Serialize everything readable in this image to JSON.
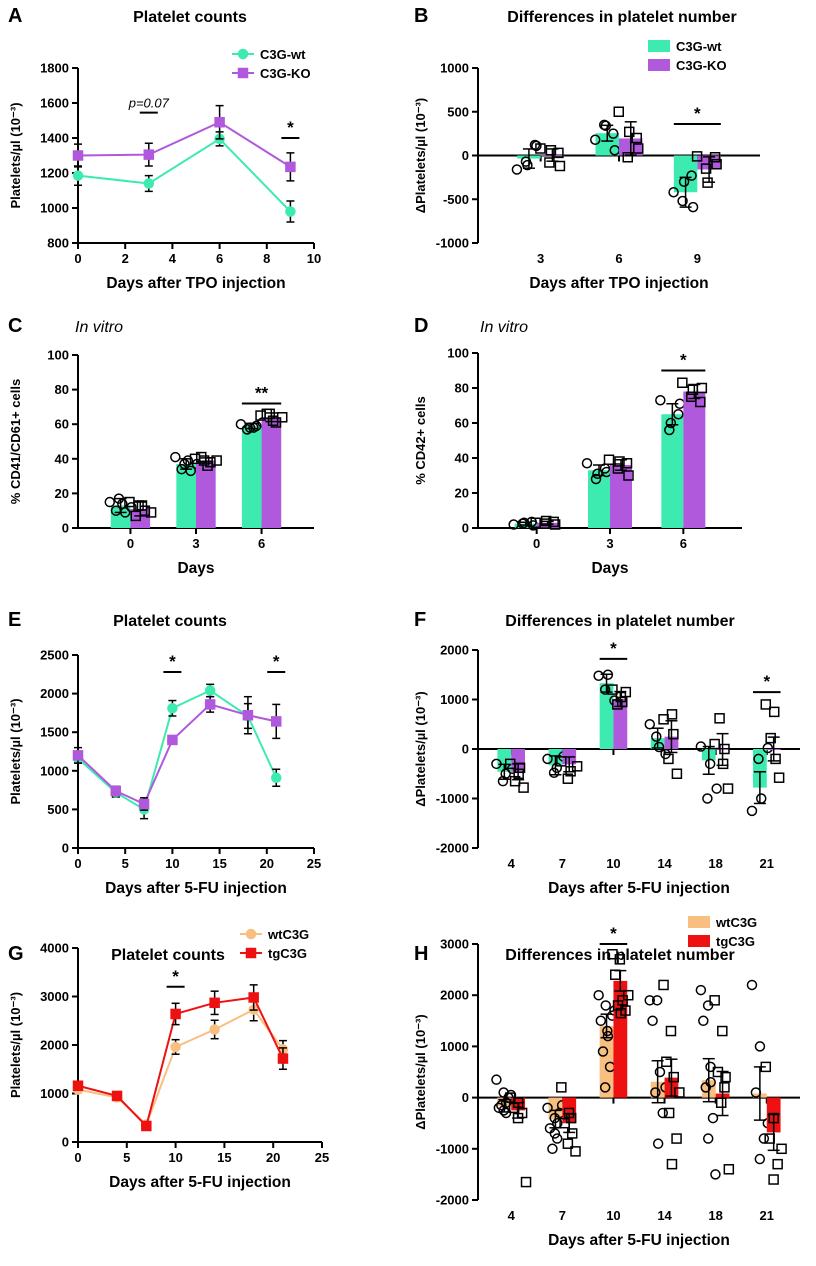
{
  "colors": {
    "wt": "#3DEBB1",
    "ko": "#B059DD",
    "wtC3G": "#F9BF80",
    "tgC3G": "#EE1111",
    "axis": "#000000"
  },
  "chart_data": [
    {
      "id": "A",
      "panel": "A",
      "type": "line",
      "title": "Platelet counts",
      "subtitle": "",
      "xlabel": "Days after TPO injection",
      "ylabel": "Platelets/µl (10⁻³)",
      "xlim": [
        0,
        10
      ],
      "ylim": [
        800,
        1800
      ],
      "xticks": [
        0,
        2,
        4,
        6,
        8,
        10
      ],
      "yticks": [
        800,
        1000,
        1200,
        1400,
        1600,
        1800
      ],
      "x": [
        0,
        3,
        6,
        9
      ],
      "series": [
        {
          "name": "C3G-wt",
          "color": "#3DEBB1",
          "marker": "circle",
          "values": [
            1185,
            1140,
            1395,
            980
          ],
          "errors": [
            55,
            45,
            40,
            60
          ]
        },
        {
          "name": "C3G-KO",
          "color": "#B059DD",
          "marker": "square",
          "values": [
            1300,
            1305,
            1490,
            1235
          ],
          "errors": [
            65,
            65,
            95,
            80
          ]
        }
      ],
      "annotations": [
        {
          "x": 3,
          "y": 1545,
          "text": "p=0.07",
          "bar": true
        },
        {
          "x": 9,
          "y": 1400,
          "text": "*",
          "bar": true
        }
      ],
      "legend": {
        "position": "top-right",
        "entries": [
          "C3G-wt",
          "C3G-KO"
        ]
      }
    },
    {
      "id": "B",
      "panel": "B",
      "type": "bar",
      "title": "Differences in platelet number",
      "subtitle": "",
      "xlabel": "Days after TPO injection",
      "ylabel": "ΔPlatelets/µl (10⁻³)",
      "ylim": [
        -1000,
        1000
      ],
      "yticks": [
        -1000,
        -500,
        0,
        500,
        1000
      ],
      "categories": [
        "3",
        "6",
        "9"
      ],
      "series": [
        {
          "name": "C3G-wt",
          "color": "#3DEBB1",
          "marker": "circle",
          "values": [
            -35,
            255,
            -420
          ],
          "errors": [
            110,
            90,
            170
          ],
          "points": [
            [
              -160,
              -110,
              -70,
              110,
              120
            ],
            [
              180,
              340,
              350,
              60,
              250
            ],
            [
              -420,
              -300,
              -520,
              -590,
              -230
            ]
          ]
        },
        {
          "name": "C3G-KO",
          "color": "#B059DD",
          "marker": "square",
          "values": [
            5,
            195,
            -160
          ],
          "errors": [
            70,
            190,
            145
          ],
          "points": [
            [
              80,
              60,
              -80,
              -120,
              30
            ],
            [
              500,
              270,
              -20,
              80,
              200
            ],
            [
              -10,
              -310,
              -150,
              -100,
              -20
            ]
          ]
        }
      ],
      "annotations": [
        {
          "category": "9",
          "y": 360,
          "text": "*",
          "bar": true
        }
      ],
      "legend": {
        "position": "top-right",
        "entries": [
          "C3G-wt",
          "C3G-KO"
        ]
      }
    },
    {
      "id": "C",
      "panel": "C",
      "type": "bar",
      "title": "",
      "subtitle": "In vitro",
      "xlabel": "Days",
      "ylabel": "% CD41/CD61+ cells",
      "ylim": [
        0,
        100
      ],
      "yticks": [
        0,
        20,
        40,
        60,
        80,
        100
      ],
      "categories": [
        "0",
        "3",
        "6"
      ],
      "series": [
        {
          "name": "C3G-wt",
          "color": "#3DEBB1",
          "marker": "circle",
          "values": [
            13,
            37,
            59
          ],
          "errors": [
            4,
            3,
            1.5
          ],
          "points": [
            [
              15,
              17,
              10,
              9,
              14,
              12
            ],
            [
              41,
              37,
              34,
              33,
              39,
              37
            ],
            [
              60,
              58,
              57,
              59,
              58,
              61
            ]
          ]
        },
        {
          "name": "C3G-KO",
          "color": "#B059DD",
          "marker": "square",
          "values": [
            11,
            39,
            64
          ],
          "errors": [
            4,
            1.5,
            2.5
          ],
          "points": [
            [
              15,
              13,
              7,
              10,
              13,
              9
            ],
            [
              40,
              39,
              41,
              38,
              36,
              39
            ],
            [
              65,
              66,
              66,
              61,
              62,
              64
            ]
          ]
        }
      ],
      "annotations": [
        {
          "category": "6",
          "y": 72,
          "text": "**",
          "bar": true
        }
      ],
      "legend": {
        "position": "none",
        "entries": []
      }
    },
    {
      "id": "D",
      "panel": "D",
      "type": "bar",
      "title": "",
      "subtitle": "In vitro",
      "xlabel": "Days",
      "ylabel": "% CD42+ cells",
      "ylim": [
        0,
        100
      ],
      "yticks": [
        0,
        20,
        40,
        60,
        80,
        100
      ],
      "categories": [
        "0",
        "3",
        "6"
      ],
      "series": [
        {
          "name": "C3G-wt",
          "color": "#3DEBB1",
          "marker": "circle",
          "values": [
            2.5,
            33,
            65
          ],
          "errors": [
            0.8,
            3,
            6
          ],
          "points": [
            [
              2,
              3,
              2.5,
              1.5,
              3.5
            ],
            [
              37,
              31,
              28,
              32,
              34
            ],
            [
              73,
              60,
              56,
              71,
              65
            ]
          ]
        },
        {
          "name": "C3G-KO",
          "color": "#B059DD",
          "marker": "square",
          "values": [
            3,
            36,
            78
          ],
          "errors": [
            0.8,
            3,
            4
          ],
          "points": [
            [
              3,
              4,
              2.5,
              2,
              3.5
            ],
            [
              39,
              38,
              34,
              30,
              37
            ],
            [
              83,
              79,
              75,
              80,
              72
            ]
          ]
        }
      ],
      "annotations": [
        {
          "category": "6",
          "y": 90,
          "text": "*",
          "bar": true
        }
      ],
      "legend": {
        "position": "none",
        "entries": []
      }
    },
    {
      "id": "E",
      "panel": "E",
      "type": "line",
      "title": "Platelet counts",
      "subtitle": "",
      "xlabel": "Days after 5-FU injection",
      "ylabel": "Platelets/µl (10⁻³)",
      "xlim": [
        0,
        25
      ],
      "ylim": [
        0,
        2500
      ],
      "xticks": [
        0,
        5,
        10,
        15,
        20,
        25
      ],
      "yticks": [
        0,
        500,
        1000,
        1500,
        2000,
        2500
      ],
      "x": [
        0,
        4,
        7,
        10,
        14,
        18,
        21
      ],
      "series": [
        {
          "name": "C3G-wt",
          "color": "#3DEBB1",
          "marker": "circle",
          "values": [
            1160,
            720,
            500,
            1810,
            2040,
            1710,
            910
          ],
          "errors": [
            60,
            60,
            120,
            100,
            80,
            160,
            110
          ]
        },
        {
          "name": "C3G-KO",
          "color": "#B059DD",
          "marker": "square",
          "values": [
            1200,
            740,
            570,
            1400,
            1860,
            1720,
            1640
          ],
          "errors": [
            100,
            60,
            80,
            50,
            100,
            240,
            220
          ]
        }
      ],
      "annotations": [
        {
          "x": 10,
          "y": 2280,
          "text": "*",
          "bar": true
        },
        {
          "x": 21,
          "y": 2280,
          "text": "*",
          "bar": true
        }
      ],
      "legend": {
        "position": "none",
        "entries": []
      }
    },
    {
      "id": "F",
      "panel": "F",
      "type": "bar",
      "title": "Differences in platelet number",
      "subtitle": "",
      "xlabel": "Days after 5-FU injection",
      "ylabel": "ΔPlatelets/µl (10⁻³)",
      "ylim": [
        -2000,
        2000
      ],
      "yticks": [
        -2000,
        -1000,
        0,
        1000,
        2000
      ],
      "categories": [
        "4",
        "7",
        "10",
        "14",
        "18",
        "21"
      ],
      "series": [
        {
          "name": "C3G-wt",
          "color": "#3DEBB1",
          "marker": "circle",
          "values": [
            -460,
            -330,
            1330,
            220,
            -230,
            -780
          ],
          "errors": [
            150,
            190,
            180,
            200,
            280,
            320
          ],
          "points": [
            [
              -300,
              -500,
              -650,
              -400
            ],
            [
              -200,
              -380,
              -480,
              -150
            ],
            [
              1480,
              1500,
              1200,
              980
            ],
            [
              500,
              40,
              250,
              -100
            ],
            [
              50,
              -300,
              -1000,
              -800
            ],
            [
              -1250,
              -1000,
              -200,
              20
            ]
          ]
        },
        {
          "name": "C3G-KO",
          "color": "#B059DD",
          "marker": "square",
          "values": [
            -460,
            -310,
            1010,
            250,
            -10,
            0
          ],
          "errors": [
            160,
            150,
            150,
            320,
            320,
            240
          ],
          "points": [
            [
              -300,
              -500,
              -650,
              -780,
              -380
            ],
            [
              -250,
              -450,
              -600,
              -350
            ],
            [
              1200,
              1050,
              900,
              1150,
              950
            ],
            [
              600,
              700,
              -200,
              -500,
              300
            ],
            [
              100,
              -300,
              620,
              -800,
              0
            ],
            [
              900,
              750,
              220,
              -580,
              -200
            ]
          ]
        }
      ],
      "annotations": [
        {
          "category": "10",
          "y": 1820,
          "text": "*",
          "bar": true
        },
        {
          "category": "21",
          "y": 1150,
          "text": "*",
          "bar": true
        }
      ],
      "legend": {
        "position": "none",
        "entries": []
      }
    },
    {
      "id": "G",
      "panel": "G",
      "type": "line",
      "title": "Platelet counts",
      "subtitle": "",
      "xlabel": "Days after 5-FU injection",
      "ylabel": "Platelets/µl (10⁻³)",
      "xlim": [
        0,
        25
      ],
      "ylim": [
        0,
        4000
      ],
      "xticks": [
        0,
        5,
        10,
        15,
        20,
        25
      ],
      "yticks": [
        0,
        1000,
        2000,
        3000,
        4000
      ],
      "x": [
        0,
        4,
        7,
        10,
        14,
        18,
        21
      ],
      "series": [
        {
          "name": "wtC3G",
          "color": "#F9BF80",
          "marker": "circle",
          "values": [
            1080,
            920,
            360,
            1960,
            2320,
            2730,
            1910
          ],
          "errors": [
            60,
            60,
            40,
            150,
            190,
            230,
            180
          ]
        },
        {
          "name": "tgC3G",
          "color": "#EE1111",
          "marker": "square",
          "values": [
            1160,
            950,
            330,
            2640,
            2870,
            2980,
            1720
          ],
          "errors": [
            60,
            60,
            40,
            220,
            240,
            260,
            220
          ]
        }
      ],
      "annotations": [
        {
          "x": 10,
          "y": 3200,
          "text": "*",
          "bar": true
        }
      ],
      "legend": {
        "position": "top-right",
        "entries": [
          "wtC3G",
          "tgC3G"
        ]
      }
    },
    {
      "id": "H",
      "panel": "H",
      "type": "bar",
      "title": "Differences in platelet number",
      "subtitle": "",
      "xlabel": "Days after 5-FU injection",
      "ylabel": "ΔPlatelets/µl (10⁻³)",
      "ylim": [
        -2000,
        3000
      ],
      "yticks": [
        -2000,
        -1000,
        0,
        1000,
        2000,
        3000
      ],
      "categories": [
        "4",
        "7",
        "10",
        "14",
        "18",
        "21"
      ],
      "series": [
        {
          "name": "wtC3G",
          "color": "#F9BF80",
          "marker": "circle",
          "values": [
            -160,
            -420,
            1400,
            310,
            340,
            80
          ],
          "errors": [
            120,
            170,
            230,
            410,
            420,
            520
          ],
          "points": [
            [
              350,
              100,
              -200,
              -300,
              -150,
              0,
              -250,
              50,
              -100
            ],
            [
              -200,
              -400,
              -600,
              -800,
              -1000,
              -300,
              -700,
              -150,
              -500
            ],
            [
              2000,
              1800,
              1500,
              1200,
              900,
              600,
              200,
              1600,
              1300,
              1700
            ],
            [
              1900,
              1900,
              1500,
              500,
              100,
              -300,
              -900,
              200
            ],
            [
              2100,
              1800,
              1500,
              600,
              200,
              -400,
              -800,
              -1500,
              300
            ],
            [
              2200,
              1000,
              100,
              -800,
              -1200,
              -500
            ]
          ]
        },
        {
          "name": "tgC3G",
          "color": "#EE1111",
          "marker": "square",
          "values": [
            -250,
            -500,
            2280,
            390,
            80,
            -680
          ],
          "errors": [
            150,
            180,
            200,
            360,
            430,
            350
          ],
          "points": [
            [
              0,
              -100,
              -200,
              -300,
              -400,
              -1650
            ],
            [
              200,
              -300,
              -500,
              -700,
              -900,
              -1050,
              -400
            ],
            [
              2800,
              2700,
              2400,
              1900,
              1800,
              1700,
              1650,
              2000
            ],
            [
              2200,
              1300,
              700,
              400,
              -300,
              -800,
              -1300,
              100
            ],
            [
              1900,
              1300,
              500,
              400,
              -100,
              -1400,
              200
            ],
            [
              600,
              -400,
              -800,
              -1300,
              -1600,
              -1000
            ]
          ]
        }
      ],
      "annotations": [
        {
          "category": "10",
          "y": 3000,
          "text": "*",
          "bar": true
        }
      ],
      "legend": {
        "position": "top-right",
        "entries": [
          "wtC3G",
          "tgC3G"
        ]
      }
    }
  ]
}
